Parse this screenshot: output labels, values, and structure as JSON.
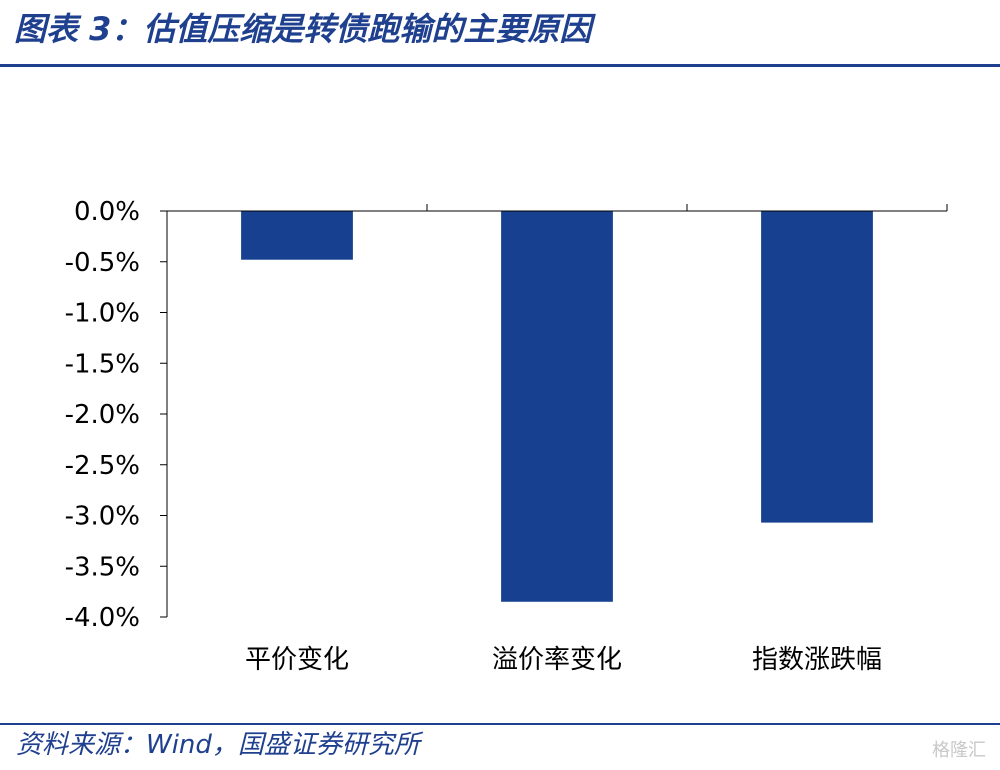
{
  "title": "图表 3：估值压缩是转债跑输的主要原因",
  "source": "资料来源：Wind，国盛证券研究所",
  "watermark": "格隆汇",
  "colors": {
    "accent": "#1f3f8f",
    "bar": "#174190"
  },
  "chart_data": {
    "type": "bar",
    "categories": [
      "平价变化",
      "溢价率变化",
      "指数涨跌幅"
    ],
    "values": [
      -0.48,
      -3.85,
      -3.07
    ],
    "ylim": [
      -4.0,
      0.0
    ],
    "yticks": [
      0.0,
      -0.5,
      -1.0,
      -1.5,
      -2.0,
      -2.5,
      -3.0,
      -3.5,
      -4.0
    ],
    "ytick_labels": [
      "0.0%",
      "-0.5%",
      "-1.0%",
      "-1.5%",
      "-2.0%",
      "-2.5%",
      "-3.0%",
      "-3.5%",
      "-4.0%"
    ],
    "xlabel": "",
    "ylabel": "",
    "grid": false,
    "legend": "none"
  }
}
